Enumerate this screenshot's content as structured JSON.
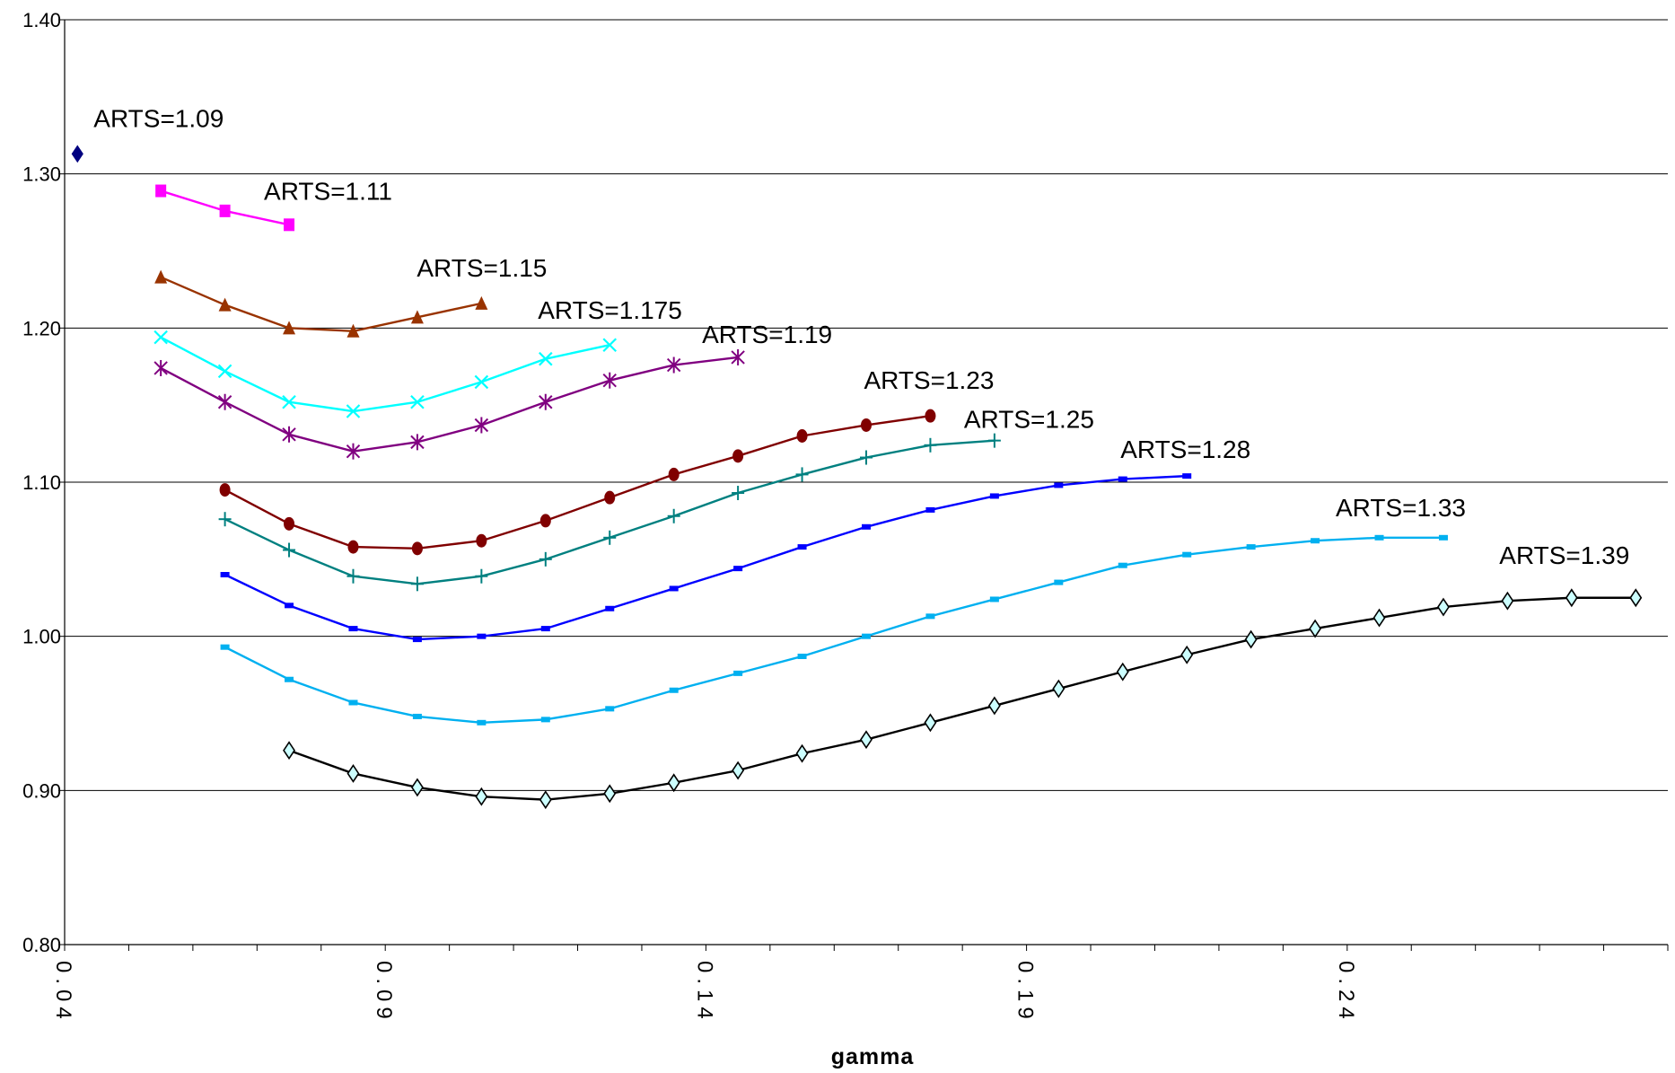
{
  "chart_data": {
    "type": "line",
    "title": "",
    "xlabel": "gamma",
    "ylabel": "",
    "xlim": [
      0.04,
      0.29
    ],
    "ylim": [
      0.8,
      1.4
    ],
    "x_ticks": [
      "0.04",
      "0.09",
      "0.14",
      "0.19",
      "0.24"
    ],
    "y_ticks": [
      "0.80",
      "0.90",
      "1.00",
      "1.10",
      "1.20",
      "1.30",
      "1.40"
    ],
    "grid": "horizontal",
    "legend": "none",
    "series": [
      {
        "name": "ARTS=1.09",
        "color": "#000080",
        "marker": "diamond",
        "x": [
          0.042
        ],
        "y": [
          1.313
        ]
      },
      {
        "name": "ARTS=1.11",
        "color": "#FF00FF",
        "marker": "square",
        "x": [
          0.055,
          0.065,
          0.075
        ],
        "y": [
          1.289,
          1.276,
          1.267
        ]
      },
      {
        "name": "ARTS=1.15",
        "color": "#993300",
        "marker": "triangle",
        "x": [
          0.055,
          0.065,
          0.075,
          0.085,
          0.095,
          0.105
        ],
        "y": [
          1.233,
          1.215,
          1.2,
          1.198,
          1.207,
          1.216
        ]
      },
      {
        "name": "ARTS=1.175",
        "color": "#00FFFF",
        "marker": "x",
        "x": [
          0.055,
          0.065,
          0.075,
          0.085,
          0.095,
          0.105,
          0.115,
          0.125
        ],
        "y": [
          1.194,
          1.172,
          1.152,
          1.146,
          1.152,
          1.165,
          1.18,
          1.189
        ]
      },
      {
        "name": "ARTS=1.19",
        "color": "#800080",
        "marker": "star",
        "x": [
          0.055,
          0.065,
          0.075,
          0.085,
          0.095,
          0.105,
          0.115,
          0.125,
          0.135,
          0.145
        ],
        "y": [
          1.174,
          1.152,
          1.131,
          1.12,
          1.126,
          1.137,
          1.152,
          1.166,
          1.176,
          1.181
        ]
      },
      {
        "name": "ARTS=1.23",
        "color": "#800000",
        "marker": "circle",
        "x": [
          0.065,
          0.075,
          0.085,
          0.095,
          0.105,
          0.115,
          0.125,
          0.135,
          0.145,
          0.155,
          0.165,
          0.175
        ],
        "y": [
          1.095,
          1.073,
          1.058,
          1.057,
          1.062,
          1.075,
          1.09,
          1.105,
          1.117,
          1.13,
          1.137,
          1.143
        ]
      },
      {
        "name": "ARTS=1.25",
        "color": "#008080",
        "marker": "plus",
        "x": [
          0.065,
          0.075,
          0.085,
          0.095,
          0.105,
          0.115,
          0.125,
          0.135,
          0.145,
          0.155,
          0.165,
          0.175,
          0.185
        ],
        "y": [
          1.076,
          1.056,
          1.039,
          1.034,
          1.039,
          1.05,
          1.064,
          1.078,
          1.093,
          1.105,
          1.116,
          1.124,
          1.127
        ]
      },
      {
        "name": "ARTS=1.28",
        "color": "#0000FF",
        "marker": "dash",
        "x": [
          0.065,
          0.075,
          0.085,
          0.095,
          0.105,
          0.115,
          0.125,
          0.135,
          0.145,
          0.155,
          0.165,
          0.175,
          0.185,
          0.195,
          0.205,
          0.215
        ],
        "y": [
          1.04,
          1.02,
          1.005,
          0.998,
          1.0,
          1.005,
          1.018,
          1.031,
          1.044,
          1.058,
          1.071,
          1.082,
          1.091,
          1.098,
          1.102,
          1.104
        ]
      },
      {
        "name": "ARTS=1.33",
        "color": "#00B0F0",
        "marker": "dash",
        "x": [
          0.065,
          0.075,
          0.085,
          0.095,
          0.105,
          0.115,
          0.125,
          0.135,
          0.145,
          0.155,
          0.165,
          0.175,
          0.185,
          0.195,
          0.205,
          0.215,
          0.225,
          0.235,
          0.245,
          0.255
        ],
        "y": [
          0.993,
          0.972,
          0.957,
          0.948,
          0.944,
          0.946,
          0.953,
          0.965,
          0.976,
          0.987,
          1.0,
          1.013,
          1.024,
          1.035,
          1.046,
          1.053,
          1.058,
          1.062,
          1.064,
          1.064
        ]
      },
      {
        "name": "ARTS=1.39",
        "color": "#000000",
        "marker": "diamond-open",
        "x": [
          0.075,
          0.085,
          0.095,
          0.105,
          0.115,
          0.125,
          0.135,
          0.145,
          0.155,
          0.165,
          0.175,
          0.185,
          0.195,
          0.205,
          0.215,
          0.225,
          0.235,
          0.245,
          0.255,
          0.265,
          0.275,
          0.285
        ],
        "y": [
          0.926,
          0.911,
          0.902,
          0.896,
          0.894,
          0.898,
          0.905,
          0.913,
          0.924,
          0.933,
          0.944,
          0.955,
          0.966,
          0.977,
          0.988,
          0.998,
          1.005,
          1.012,
          1.019,
          1.023,
          1.025,
          1.025
        ]
      }
    ]
  }
}
